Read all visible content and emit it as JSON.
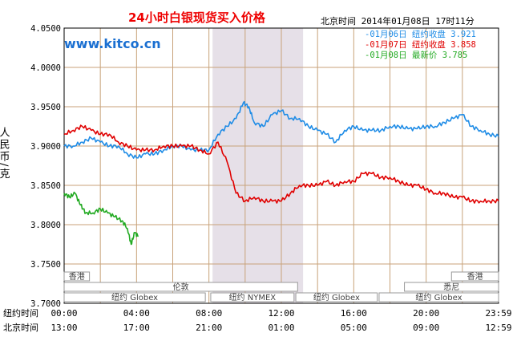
{
  "title": "24小时白银现货买入价格",
  "timestamp": "北京时间   2014年01月08日 17时11分",
  "brand": "www.kitco.cn",
  "ylabel": "人民币/克",
  "row_labels": {
    "ny": "纽约时间",
    "bj": "北京时间"
  },
  "colors": {
    "jan06": "#1f8ce6",
    "jan07": "#e00000",
    "jan08": "#22aa22",
    "grid": "#c8a27a",
    "shade": "#e6e0e8",
    "bar_border": "#999999"
  },
  "legend": [
    {
      "text": "-01月06日  纽约收盘 3.921",
      "color": "#1f8ce6"
    },
    {
      "text": "-01月07日  纽约收盘 3.858",
      "color": "#e00000"
    },
    {
      "text": "-01月08日    最新价 3.785",
      "color": "#22aa22"
    }
  ],
  "markets": [
    {
      "name": "香港",
      "row": 0,
      "start": 0,
      "end": 1.4
    },
    {
      "name": "香港",
      "row": 0,
      "start": 21.4,
      "end": 24
    },
    {
      "name": "伦敦",
      "row": 1,
      "start": 0,
      "end": 12.9
    },
    {
      "name": "悉尼",
      "row": 1,
      "start": 18.8,
      "end": 24
    },
    {
      "name": "纽约 Globex",
      "row": 2,
      "start": 0,
      "end": 7.8
    },
    {
      "name": "纽约 NYMEX",
      "row": 2,
      "start": 8.1,
      "end": 12.7
    },
    {
      "name": "纽约 Globex",
      "row": 2,
      "start": 12.8,
      "end": 17.3
    },
    {
      "name": "纽约 Globex",
      "row": 2,
      "start": 17.4,
      "end": 24
    }
  ],
  "chart_data": {
    "type": "line",
    "ylim": [
      3.7,
      4.05
    ],
    "y_ticks": [
      "3.7000",
      "3.7500",
      "3.8000",
      "3.8500",
      "3.9000",
      "3.9500",
      "4.0000",
      "4.0500"
    ],
    "xlim": [
      0,
      24
    ],
    "x_ticks_ny": [
      "00:00",
      "04:00",
      "08:00",
      "12:00",
      "16:00",
      "20:00",
      "23:59"
    ],
    "x_ticks_bj": [
      "13:00",
      "17:00",
      "21:00",
      "01:00",
      "05:00",
      "09:00",
      "12:59"
    ],
    "shaded_range": [
      8.2,
      13.2
    ],
    "grid": true,
    "series": [
      {
        "name": "01月06日",
        "points": [
          [
            0,
            3.9
          ],
          [
            0.5,
            3.9
          ],
          [
            1,
            3.905
          ],
          [
            1.5,
            3.91
          ],
          [
            2,
            3.905
          ],
          [
            2.5,
            3.9
          ],
          [
            3,
            3.9
          ],
          [
            3.5,
            3.89
          ],
          [
            4,
            3.885
          ],
          [
            4.5,
            3.89
          ],
          [
            5,
            3.89
          ],
          [
            5.5,
            3.895
          ],
          [
            6,
            3.9
          ],
          [
            6.5,
            3.9
          ],
          [
            7,
            3.895
          ],
          [
            7.5,
            3.895
          ],
          [
            8,
            3.895
          ],
          [
            8.5,
            3.915
          ],
          [
            9,
            3.925
          ],
          [
            9.5,
            3.935
          ],
          [
            9.9,
            3.955
          ],
          [
            10.2,
            3.95
          ],
          [
            10.5,
            3.93
          ],
          [
            11,
            3.925
          ],
          [
            11.5,
            3.94
          ],
          [
            12,
            3.945
          ],
          [
            12.5,
            3.935
          ],
          [
            13,
            3.935
          ],
          [
            13.5,
            3.925
          ],
          [
            14,
            3.92
          ],
          [
            14.5,
            3.915
          ],
          [
            15,
            3.905
          ],
          [
            15.5,
            3.92
          ],
          [
            16,
            3.925
          ],
          [
            16.5,
            3.92
          ],
          [
            17,
            3.92
          ],
          [
            17.5,
            3.92
          ],
          [
            18,
            3.925
          ],
          [
            18.5,
            3.925
          ],
          [
            19,
            3.922
          ],
          [
            19.5,
            3.922
          ],
          [
            20,
            3.925
          ],
          [
            20.5,
            3.925
          ],
          [
            21,
            3.93
          ],
          [
            21.5,
            3.935
          ],
          [
            22,
            3.94
          ],
          [
            22.5,
            3.925
          ],
          [
            23,
            3.92
          ],
          [
            23.5,
            3.915
          ],
          [
            24,
            3.912
          ]
        ]
      },
      {
        "name": "01月07日",
        "points": [
          [
            0,
            3.915
          ],
          [
            0.5,
            3.92
          ],
          [
            1,
            3.925
          ],
          [
            1.5,
            3.92
          ],
          [
            2,
            3.915
          ],
          [
            2.5,
            3.915
          ],
          [
            3,
            3.905
          ],
          [
            3.5,
            3.9
          ],
          [
            4,
            3.895
          ],
          [
            4.5,
            3.895
          ],
          [
            5,
            3.895
          ],
          [
            5.5,
            3.9
          ],
          [
            6,
            3.9
          ],
          [
            6.5,
            3.9
          ],
          [
            7,
            3.9
          ],
          [
            7.5,
            3.895
          ],
          [
            8,
            3.89
          ],
          [
            8.5,
            3.905
          ],
          [
            9,
            3.88
          ],
          [
            9.5,
            3.84
          ],
          [
            10,
            3.83
          ],
          [
            10.5,
            3.835
          ],
          [
            11,
            3.83
          ],
          [
            11.5,
            3.83
          ],
          [
            12,
            3.83
          ],
          [
            12.5,
            3.84
          ],
          [
            13,
            3.85
          ],
          [
            13.5,
            3.85
          ],
          [
            14,
            3.85
          ],
          [
            14.5,
            3.855
          ],
          [
            15,
            3.85
          ],
          [
            15.5,
            3.855
          ],
          [
            16,
            3.855
          ],
          [
            16.5,
            3.865
          ],
          [
            17,
            3.865
          ],
          [
            17.5,
            3.86
          ],
          [
            18,
            3.86
          ],
          [
            18.5,
            3.855
          ],
          [
            19,
            3.85
          ],
          [
            19.5,
            3.85
          ],
          [
            20,
            3.845
          ],
          [
            20.5,
            3.84
          ],
          [
            21,
            3.84
          ],
          [
            21.5,
            3.835
          ],
          [
            22,
            3.835
          ],
          [
            22.5,
            3.83
          ],
          [
            23,
            3.83
          ],
          [
            23.5,
            3.83
          ],
          [
            24,
            3.83
          ]
        ]
      },
      {
        "name": "01月08日",
        "points": [
          [
            0,
            3.84
          ],
          [
            0.3,
            3.835
          ],
          [
            0.6,
            3.84
          ],
          [
            0.9,
            3.825
          ],
          [
            1.2,
            3.815
          ],
          [
            1.6,
            3.815
          ],
          [
            2,
            3.82
          ],
          [
            2.4,
            3.815
          ],
          [
            2.8,
            3.81
          ],
          [
            3.2,
            3.805
          ],
          [
            3.5,
            3.795
          ],
          [
            3.7,
            3.775
          ],
          [
            3.9,
            3.79
          ],
          [
            4.1,
            3.785
          ]
        ]
      }
    ]
  }
}
